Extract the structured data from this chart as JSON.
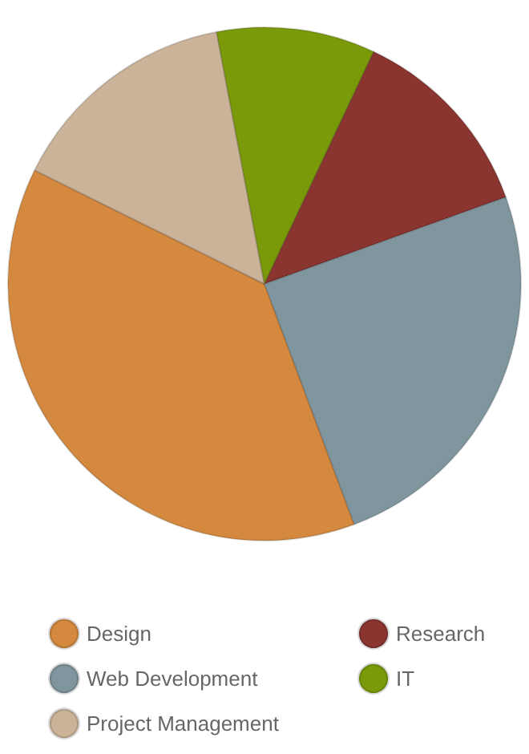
{
  "chart_data": {
    "type": "pie",
    "categories": [
      "Design",
      "Project Management",
      "IT",
      "Research",
      "Web Development"
    ],
    "values": [
      38,
      14.7,
      10,
      12.5,
      24.8
    ],
    "colors": [
      "#d4893f",
      "#cbb39a",
      "#7a9a0a",
      "#8a3530",
      "#7f969f"
    ],
    "legend": "bottom"
  }
}
